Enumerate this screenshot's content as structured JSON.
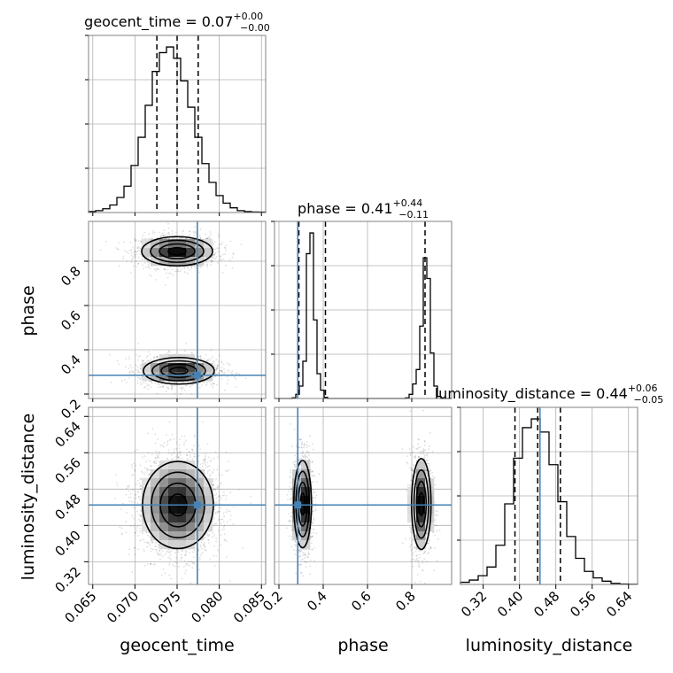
{
  "chart_data": {
    "type": "corner",
    "parameters": [
      {
        "name": "geocent_time",
        "title_main": "geocent_time = 0.07",
        "title_plus": "+0.00",
        "title_minus": "−0.00",
        "range": [
          0.0645,
          0.0855
        ],
        "ticks": [
          0.065,
          0.07,
          0.075,
          0.08,
          0.085
        ],
        "tick_labels": [
          "0.065",
          "0.070",
          "0.075",
          "0.080",
          "0.085"
        ],
        "quantiles": [
          0.0726,
          0.075,
          0.0775
        ],
        "truth": 0.0774
      },
      {
        "name": "phase",
        "title_main": "phase = 0.41",
        "title_plus": "+0.44",
        "title_minus": "−0.11",
        "range": [
          0.18,
          0.98
        ],
        "ticks": [
          0.2,
          0.4,
          0.6,
          0.8
        ],
        "tick_labels": [
          "0.2",
          "0.4",
          "0.6",
          "0.8"
        ],
        "quantiles": [
          0.29,
          0.41,
          0.86
        ],
        "truth": 0.285
      },
      {
        "name": "luminosity_distance",
        "title_main": "luminosity_distance = 0.44",
        "title_plus": "+0.06",
        "title_minus": "−0.05",
        "range": [
          0.27,
          0.66
        ],
        "ticks": [
          0.32,
          0.4,
          0.48,
          0.56,
          0.64
        ],
        "tick_labels": [
          "0.32",
          "0.40",
          "0.48",
          "0.56",
          "0.64"
        ],
        "quantiles": [
          0.39,
          0.44,
          0.49
        ],
        "truth": 0.445
      }
    ],
    "histograms": {
      "geocent_time": {
        "bin_edges": [
          0.0645,
          0.0855
        ],
        "counts": [
          0.5,
          1,
          2,
          4,
          8,
          14,
          25,
          40,
          57,
          75,
          85,
          88,
          82,
          70,
          56,
          40,
          26,
          16,
          9,
          5,
          2.5,
          1,
          0.5,
          0.3,
          0.2
        ]
      },
      "phase": {
        "bin_edges": [
          0.18,
          0.98
        ],
        "counts": [
          0,
          0,
          0,
          0,
          0,
          0.3,
          2,
          6,
          18,
          70,
          80,
          38,
          12,
          4,
          0.5,
          0,
          0,
          0,
          0,
          0,
          0,
          0,
          0,
          0,
          0,
          0,
          0,
          0,
          0,
          0,
          0,
          0,
          0,
          0,
          0,
          0,
          0,
          0.3,
          2,
          7,
          14,
          35,
          68,
          58,
          22,
          6,
          1,
          0,
          0,
          0
        ]
      },
      "luminosity_distance": {
        "bin_edges": [
          0.27,
          0.66
        ],
        "counts": [
          1,
          2,
          4,
          8,
          18,
          37,
          58,
          72,
          76,
          70,
          55,
          38,
          22,
          12,
          6,
          3,
          1.5,
          0.5,
          0.2,
          0.1
        ]
      }
    },
    "grid": true,
    "truth_color": "#4682b4"
  }
}
